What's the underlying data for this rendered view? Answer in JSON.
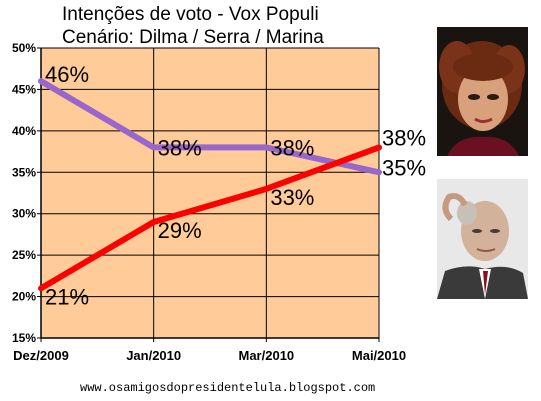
{
  "chart_data": {
    "type": "line",
    "title": "Intenções de voto  - Vox Populi",
    "subtitle": "Cenário: Dilma / Serra / Marina",
    "categories": [
      "Dez/2009",
      "Jan/2010",
      "Mar/2010",
      "Mai/2010"
    ],
    "ylim": [
      15,
      50
    ],
    "yticks": [
      "15%",
      "20%",
      "25%",
      "30%",
      "35%",
      "40%",
      "45%",
      "50%"
    ],
    "grid": true,
    "plot_background": "#FFCC99",
    "series": [
      {
        "color": "#9966CC",
        "values": [
          46,
          38,
          38,
          35
        ],
        "labels": [
          "46%",
          "38%",
          "38%",
          "35%"
        ]
      },
      {
        "color": "#FF0000",
        "values": [
          21,
          29,
          33,
          38
        ],
        "labels": [
          "21%",
          "29%",
          "33%",
          "38%"
        ]
      }
    ]
  },
  "footer": "www.osamigosdopresidentelula.blogspot.com",
  "photos": [
    {
      "subject": "woman-portrait"
    },
    {
      "subject": "man-portrait"
    }
  ]
}
